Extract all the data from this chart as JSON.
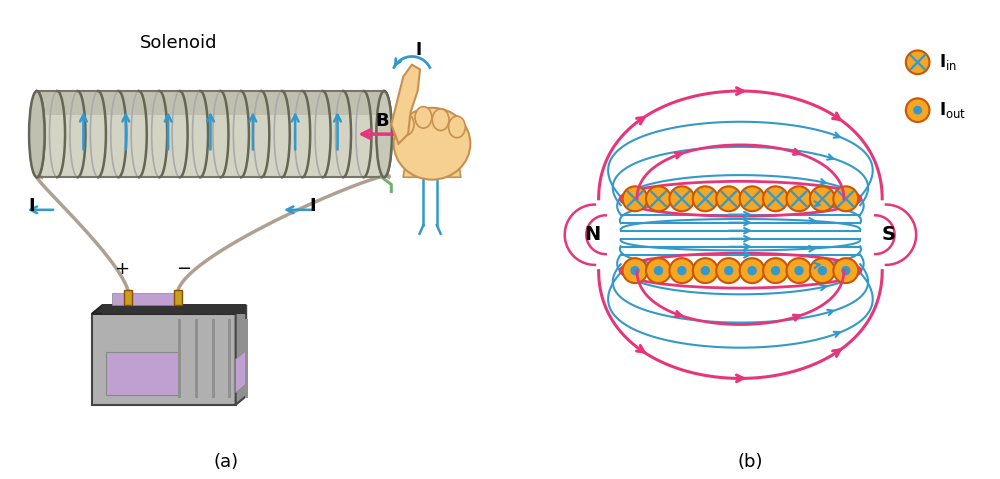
{
  "fig_width": 10.0,
  "fig_height": 4.79,
  "bg_color": "#ffffff",
  "panel_a_label": "(a)",
  "panel_b_label": "(b)",
  "solenoid_title": "Solenoid",
  "pink_color": "#e8357a",
  "blue_color": "#3399cc",
  "orange_color": "#f5a623",
  "coil_face": "#c8c8b8",
  "coil_edge": "#888878",
  "wire_color": "#b0a090",
  "green_wire": "#70b070",
  "battery_body": "#a8a8a8",
  "battery_top": "#2a2a2a",
  "battery_window": "#c8a8d8",
  "battery_rib": "#888888",
  "terminal_gold": "#c8a020",
  "hand_skin": "#f5d090",
  "hand_edge": "#c89050"
}
